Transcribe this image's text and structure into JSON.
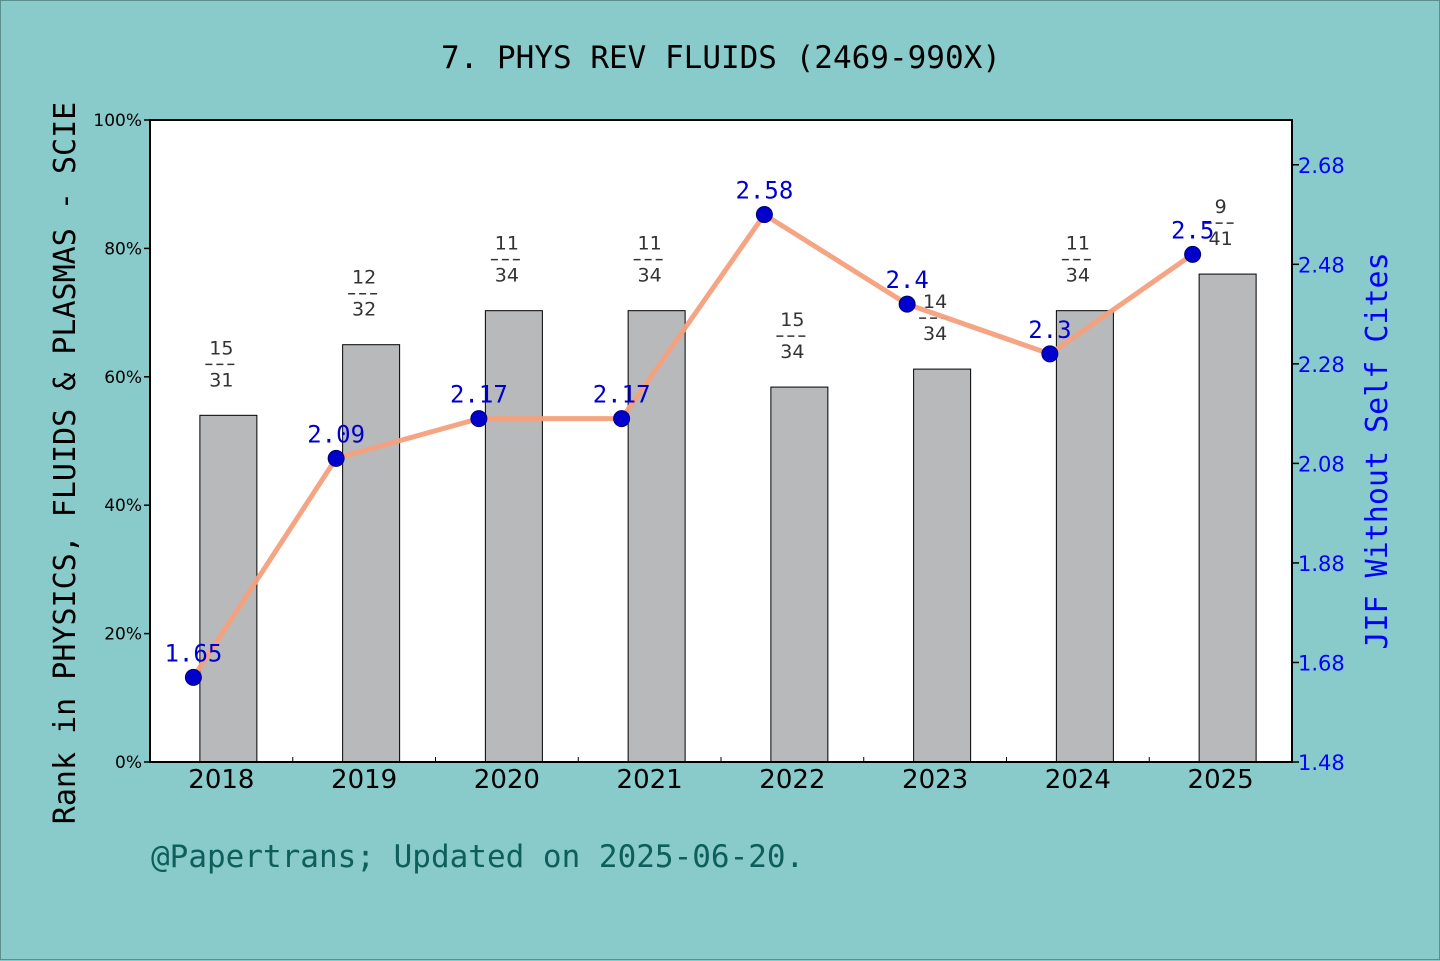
{
  "page": {
    "title": "7. PHYS REV FLUIDS (2469-990X)",
    "footer": "@Papertrans; Updated on 2025-06-20."
  },
  "colors": {
    "background": "#88cbca",
    "bar": "#b8b9bb",
    "line": "#f4a07c",
    "point": "#0000cc",
    "right_axis": "#0000ff"
  },
  "chart_data": {
    "type": "bar",
    "title": "7. PHYS REV FLUIDS (2469-990X)",
    "categories": [
      "2018",
      "2019",
      "2020",
      "2021",
      "2022",
      "2023",
      "2024",
      "2025"
    ],
    "ylabel": "Rank in PHYSICS, FLUIDS & PLASMAS - SCIE",
    "y2label": "JIF Without Self Cites",
    "ylim": [
      0,
      100
    ],
    "y2lim": [
      1.48,
      2.77
    ],
    "yticks": [
      "0%",
      "20%",
      "40%",
      "60%",
      "80%",
      "100%"
    ],
    "y2ticks": [
      "1.48",
      "1.68",
      "1.88",
      "2.08",
      "2.28",
      "2.48",
      "2.68"
    ],
    "series": [
      {
        "type": "bar",
        "values": [
          54.0,
          65.0,
          70.3,
          70.3,
          58.4,
          61.2,
          70.3,
          76.0
        ],
        "rank": [
          15,
          12,
          11,
          11,
          15,
          14,
          11,
          9
        ],
        "total": [
          31,
          32,
          34,
          34,
          34,
          34,
          34,
          41
        ]
      },
      {
        "type": "line",
        "values": [
          1.65,
          2.09,
          2.17,
          2.17,
          2.58,
          2.4,
          2.3,
          2.5
        ],
        "labels": [
          "1.65",
          "2.09",
          "2.17",
          "2.17",
          "2.58",
          "2.4",
          "2.3",
          "2.5"
        ]
      }
    ]
  }
}
